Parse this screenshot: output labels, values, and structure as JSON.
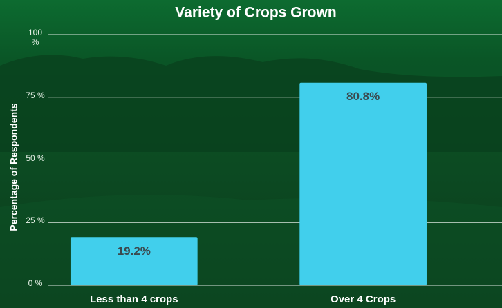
{
  "chart_data": {
    "type": "bar",
    "title": "Variety of Crops Grown",
    "y_label": "Percentage of Respondents",
    "categories": [
      "Less than 4 crops",
      "Over 4 Crops"
    ],
    "values": [
      19.2,
      80.8
    ],
    "value_labels": [
      "19.2%",
      "80.8%"
    ],
    "color": "#41cfec",
    "ylim": [
      0,
      100
    ],
    "yticks": [
      {
        "value": 0,
        "label": "0 %"
      },
      {
        "value": 25,
        "label": "25 %"
      },
      {
        "value": 50,
        "label": "50 %"
      },
      {
        "value": 75,
        "label": "75 %"
      },
      {
        "value": 100,
        "label": "100 %"
      }
    ],
    "grid": true
  }
}
